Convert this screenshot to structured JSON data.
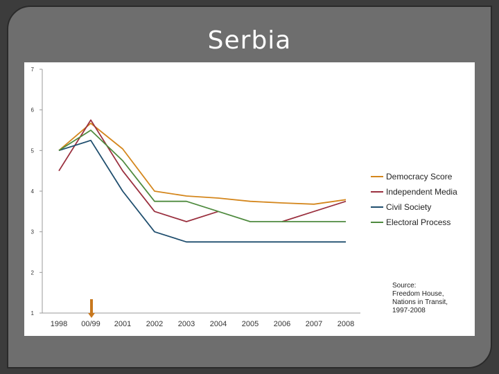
{
  "slide": {
    "title": "Serbia"
  },
  "chart_data": {
    "type": "line",
    "categories": [
      "1998",
      "00/99",
      "2001",
      "2002",
      "2003",
      "2004",
      "2005",
      "2006",
      "2007",
      "2008"
    ],
    "ylim": [
      1,
      7
    ],
    "yticks": [
      "1",
      "2",
      "3",
      "4",
      "5",
      "6",
      "7"
    ],
    "grid": false,
    "legend_position": "right",
    "series": [
      {
        "name": "Democracy Score",
        "color": "#d4861c",
        "values": [
          5.0,
          5.67,
          5.04,
          4.0,
          3.88,
          3.83,
          3.75,
          3.71,
          3.68,
          3.79
        ]
      },
      {
        "name": "Independent Media",
        "color": "#9a2f3e",
        "values": [
          4.5,
          5.75,
          4.5,
          3.5,
          3.25,
          3.5,
          null,
          3.25,
          3.5,
          3.75
        ]
      },
      {
        "name": "Civil Society",
        "color": "#1f4e6e",
        "values": [
          5.0,
          5.25,
          4.0,
          3.0,
          2.75,
          2.75,
          2.75,
          2.75,
          2.75,
          2.75
        ]
      },
      {
        "name": "Electoral Process",
        "color": "#4e8a3e",
        "values": [
          5.0,
          5.5,
          4.75,
          3.75,
          3.75,
          3.5,
          3.25,
          3.25,
          3.25,
          3.25
        ]
      }
    ],
    "source_lines": [
      "Source:",
      "Freedom House,",
      "Nations in Transit,",
      "1997-2008"
    ],
    "marker": {
      "category": "00/99",
      "color": "#c8781e"
    }
  }
}
